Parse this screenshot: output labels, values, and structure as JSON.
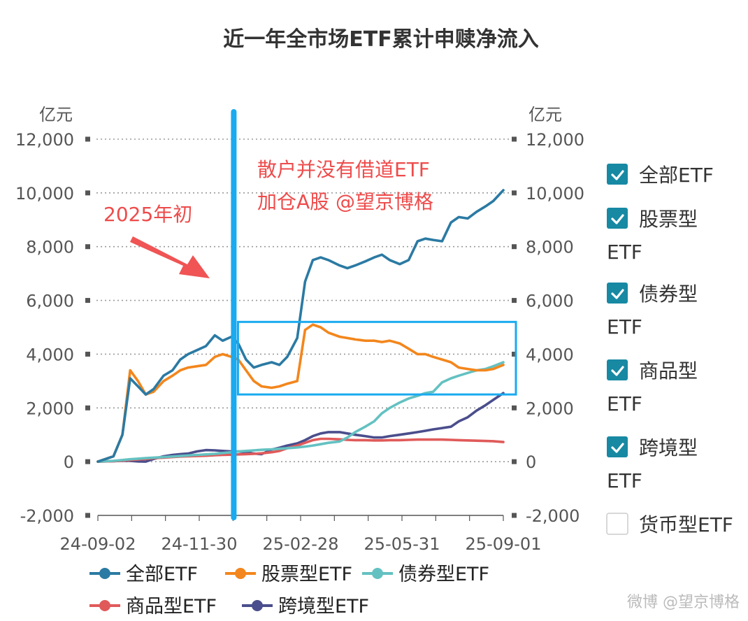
{
  "chart_data": {
    "type": "line",
    "title": "近一年全市场ETF累计申赎净流入",
    "ylabel_left": "亿元",
    "ylabel_right": "亿元",
    "ylim": [
      -2000,
      12000
    ],
    "yticks": [
      "-2,000",
      "0",
      "2,000",
      "4,000",
      "6,000",
      "8,000",
      "10,000",
      "12,000"
    ],
    "ytick_values": [
      -2000,
      0,
      2000,
      4000,
      6000,
      8000,
      10000,
      12000
    ],
    "right_yticks": [
      "-2,000",
      "0",
      "2,000",
      "4,000",
      "6,000",
      "8,000",
      "10,000",
      "12,000"
    ],
    "xticks": [
      "24-09-02",
      "24-11-30",
      "25-02-28",
      "25-05-31",
      "25-09-01"
    ],
    "x": [
      "2024-09-02",
      "2024-09-16",
      "2024-09-24",
      "2024-10-01",
      "2024-10-08",
      "2024-10-15",
      "2024-10-22",
      "2024-10-31",
      "2024-11-08",
      "2024-11-15",
      "2024-11-22",
      "2024-11-30",
      "2024-12-08",
      "2024-12-16",
      "2024-12-23",
      "2024-12-31",
      "2025-01-06",
      "2025-01-13",
      "2025-01-20",
      "2025-01-27",
      "2025-02-05",
      "2025-02-12",
      "2025-02-19",
      "2025-02-28",
      "2025-03-07",
      "2025-03-14",
      "2025-03-21",
      "2025-03-28",
      "2025-04-07",
      "2025-04-14",
      "2025-04-21",
      "2025-04-30",
      "2025-05-08",
      "2025-05-15",
      "2025-05-22",
      "2025-05-31",
      "2025-06-08",
      "2025-06-16",
      "2025-06-23",
      "2025-06-30",
      "2025-07-08",
      "2025-07-16",
      "2025-07-23",
      "2025-07-31",
      "2025-08-08",
      "2025-08-16",
      "2025-08-23",
      "2025-09-01"
    ],
    "series": [
      {
        "name": "全部ETF",
        "color": "#2b7aa3",
        "values": [
          0,
          200,
          1000,
          3100,
          2800,
          2500,
          2700,
          3200,
          3400,
          3800,
          4000,
          4150,
          4300,
          4700,
          4500,
          4650,
          4400,
          3800,
          3500,
          3600,
          3700,
          3600,
          3900,
          4600,
          6700,
          7500,
          7600,
          7500,
          7300,
          7200,
          7300,
          7450,
          7600,
          7700,
          7500,
          7350,
          7500,
          8200,
          8300,
          8250,
          8200,
          8900,
          9100,
          9050,
          9300,
          9500,
          9700,
          10100
        ]
      },
      {
        "name": "股票型ETF",
        "color": "#f3861c",
        "values": [
          0,
          200,
          1000,
          3400,
          3000,
          2500,
          2600,
          3000,
          3200,
          3400,
          3500,
          3550,
          3600,
          3900,
          4000,
          3900,
          3800,
          3400,
          3000,
          2800,
          2750,
          2800,
          2900,
          3000,
          4900,
          5100,
          5000,
          4800,
          4650,
          4600,
          4550,
          4500,
          4500,
          4450,
          4500,
          4400,
          4200,
          4000,
          4000,
          3900,
          3800,
          3700,
          3500,
          3450,
          3400,
          3400,
          3450,
          3600
        ]
      },
      {
        "name": "债券型ETF",
        "color": "#64c1c1",
        "values": [
          0,
          30,
          60,
          90,
          110,
          130,
          150,
          170,
          190,
          210,
          230,
          250,
          270,
          290,
          320,
          350,
          380,
          400,
          420,
          440,
          460,
          480,
          500,
          530,
          560,
          600,
          650,
          700,
          750,
          900,
          1100,
          1300,
          1500,
          1800,
          2000,
          2200,
          2350,
          2450,
          2550,
          2600,
          2950,
          3100,
          3200,
          3300,
          3400,
          3450,
          3550,
          3700
        ]
      },
      {
        "name": "商品型ETF",
        "color": "#e05a5a",
        "values": [
          0,
          20,
          40,
          60,
          80,
          100,
          130,
          150,
          170,
          190,
          200,
          210,
          220,
          240,
          250,
          260,
          270,
          280,
          290,
          310,
          350,
          400,
          500,
          600,
          700,
          800,
          850,
          850,
          830,
          810,
          800,
          800,
          790,
          790,
          800,
          800,
          810,
          820,
          820,
          820,
          820,
          810,
          800,
          790,
          780,
          770,
          760,
          730
        ]
      },
      {
        "name": "跨境型ETF",
        "color": "#4a4e8c",
        "values": [
          0,
          20,
          30,
          30,
          10,
          0,
          100,
          200,
          250,
          280,
          300,
          380,
          430,
          420,
          400,
          380,
          380,
          350,
          300,
          280,
          450,
          520,
          600,
          680,
          800,
          950,
          1050,
          1100,
          1100,
          1050,
          1000,
          950,
          900,
          900,
          950,
          1000,
          1050,
          1100,
          1150,
          1200,
          1250,
          1300,
          1500,
          1650,
          1900,
          2100,
          2300,
          2550
        ]
      }
    ],
    "legend_placement": "bottom",
    "grid": true
  },
  "checkbox_legend": [
    {
      "label": "全部ETF",
      "checked": true
    },
    {
      "label": "股票型ETF",
      "checked": true
    },
    {
      "label": "债券型ETF",
      "checked": true
    },
    {
      "label": "商品型ETF",
      "checked": true
    },
    {
      "label": "跨境型ETF",
      "checked": true
    },
    {
      "label": "货币型ETF",
      "checked": false
    }
  ],
  "annotations": {
    "year_start": "2025年初",
    "comment_line1": "散户并没有借道ETF",
    "comment_line2": "加仓A股 @望京博格",
    "marker_date": "2025-01-02",
    "highlight_box": {
      "x_start": "2025-01-02",
      "x_end": "2025-09-01",
      "y_low": 2500,
      "y_high": 5200
    }
  },
  "watermark": "微博 @望京博格",
  "colors": {
    "checkbox": "#1789a3",
    "annotation": "#ee4b4b",
    "marker_line": "#19aaf0",
    "box": "#19aaf0"
  }
}
